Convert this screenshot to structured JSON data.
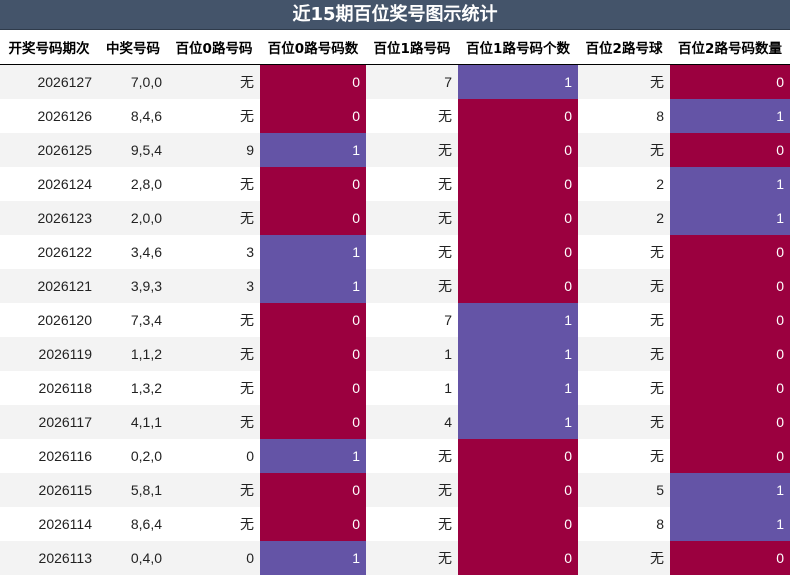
{
  "title": "近15期百位奖号图示统计",
  "headers": [
    "开奖号码期次",
    "中奖号码",
    "百位0路号码",
    "百位0路号码数",
    "百位1路号码",
    "百位1路号码个数",
    "百位2路号球",
    "百位2路号码数量"
  ],
  "rows": [
    [
      "2026127",
      "7,0,0",
      "无",
      "0",
      "7",
      "1",
      "无",
      "0"
    ],
    [
      "2026126",
      "8,4,6",
      "无",
      "0",
      "无",
      "0",
      "8",
      "1"
    ],
    [
      "2026125",
      "9,5,4",
      "9",
      "1",
      "无",
      "0",
      "无",
      "0"
    ],
    [
      "2026124",
      "2,8,0",
      "无",
      "0",
      "无",
      "0",
      "2",
      "1"
    ],
    [
      "2026123",
      "2,0,0",
      "无",
      "0",
      "无",
      "0",
      "2",
      "1"
    ],
    [
      "2026122",
      "3,4,6",
      "3",
      "1",
      "无",
      "0",
      "无",
      "0"
    ],
    [
      "2026121",
      "3,9,3",
      "3",
      "1",
      "无",
      "0",
      "无",
      "0"
    ],
    [
      "2026120",
      "7,3,4",
      "无",
      "0",
      "7",
      "1",
      "无",
      "0"
    ],
    [
      "2026119",
      "1,1,2",
      "无",
      "0",
      "1",
      "1",
      "无",
      "0"
    ],
    [
      "2026118",
      "1,3,2",
      "无",
      "0",
      "1",
      "1",
      "无",
      "0"
    ],
    [
      "2026117",
      "4,1,1",
      "无",
      "0",
      "4",
      "1",
      "无",
      "0"
    ],
    [
      "2026116",
      "0,2,0",
      "0",
      "1",
      "无",
      "0",
      "无",
      "0"
    ],
    [
      "2026115",
      "5,8,1",
      "无",
      "0",
      "无",
      "0",
      "5",
      "1"
    ],
    [
      "2026114",
      "8,6,4",
      "无",
      "0",
      "无",
      "0",
      "8",
      "1"
    ],
    [
      "2026113",
      "0,4,0",
      "0",
      "1",
      "无",
      "0",
      "无",
      "0"
    ]
  ],
  "colors": {
    "title_bg": "#44546a",
    "count_zero": "#9b003f",
    "count_one": "#6454a6",
    "stripe": "#f3f3f3"
  }
}
